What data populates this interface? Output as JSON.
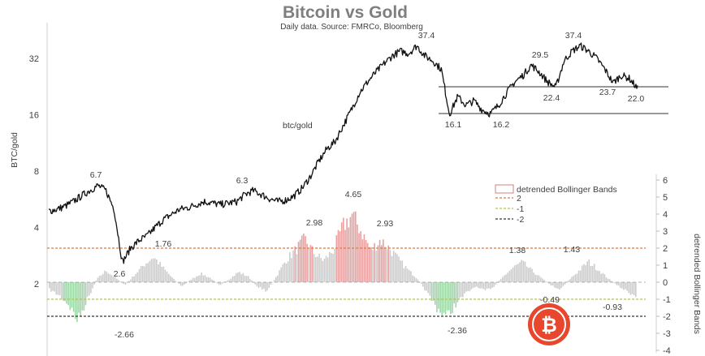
{
  "chart_data": {
    "type": "line",
    "title": "Bitcoin vs Gold",
    "subtitle": "Daily data.  Source: FMRCo, Bloomberg",
    "ylabel": "BTC/gold",
    "y2label": "detrended Bollinger Bands",
    "y_ticks": [
      {
        "value": 2,
        "label": "2"
      },
      {
        "value": 4,
        "label": "4"
      },
      {
        "value": 8,
        "label": "8"
      },
      {
        "value": 16,
        "label": "16"
      },
      {
        "value": 32,
        "label": "32"
      }
    ],
    "y2_ticks": [
      {
        "value": -4,
        "label": "-4"
      },
      {
        "value": -3,
        "label": "-3"
      },
      {
        "value": -2,
        "label": "-2"
      },
      {
        "value": -1,
        "label": "-1"
      },
      {
        "value": 0,
        "label": "0"
      },
      {
        "value": 1,
        "label": "1"
      },
      {
        "value": 2,
        "label": "2"
      },
      {
        "value": 3,
        "label": "3"
      },
      {
        "value": 4,
        "label": "4"
      },
      {
        "value": 5,
        "label": "5"
      },
      {
        "value": 6,
        "label": "6"
      }
    ],
    "series": [
      {
        "name": "btc/gold",
        "label": "btc/gold",
        "axis": "left",
        "values": [
          4.9,
          5.0,
          5.2,
          5.5,
          5.9,
          6.3,
          6.7,
          6.3,
          5.0,
          2.6,
          3.1,
          3.4,
          3.6,
          4.0,
          4.4,
          4.7,
          5.0,
          5.1,
          5.3,
          5.5,
          5.4,
          5.3,
          5.4,
          5.5,
          6.0,
          6.3,
          6.0,
          5.7,
          5.5,
          5.6,
          5.9,
          6.5,
          7.5,
          9.0,
          10.5,
          11.5,
          14.0,
          17.0,
          21.0,
          24.0,
          27.0,
          30.0,
          33.0,
          35.0,
          34.0,
          37.4,
          33.0,
          31.0,
          28.0,
          16.1,
          20.0,
          18.0,
          19.0,
          17.0,
          16.2,
          18.0,
          21.0,
          24.0,
          26.0,
          29.5,
          27.0,
          24.0,
          22.4,
          31.0,
          35.0,
          37.4,
          35.0,
          32.0,
          28.0,
          23.7,
          26.0,
          25.0,
          22.0
        ]
      },
      {
        "name": "detrended Bollinger Bands",
        "axis": "right",
        "values": [
          -0.5,
          -0.9,
          -1.5,
          -2.66,
          -1.2,
          0.2,
          0.8,
          0.3,
          -0.2,
          0.5,
          1.2,
          1.76,
          1.0,
          0.3,
          -0.3,
          0.2,
          0.6,
          0.3,
          -0.2,
          0.2,
          0.7,
          0.4,
          -0.3,
          -0.6,
          0.4,
          1.5,
          2.2,
          2.98,
          2.0,
          1.5,
          2.2,
          3.8,
          4.65,
          3.5,
          2.2,
          2.93,
          2.3,
          1.5,
          0.8,
          0.2,
          -0.8,
          -1.8,
          -2.36,
          -1.5,
          -0.8,
          -0.3,
          -0.6,
          -0.3,
          0.4,
          1.0,
          1.38,
          0.8,
          0.3,
          -0.2,
          -0.49,
          0.2,
          0.8,
          1.43,
          0.9,
          0.3,
          -0.2,
          -0.6,
          -0.93
        ]
      }
    ],
    "bands": [
      {
        "label": "2",
        "value": 2,
        "color": "#e07b39"
      },
      {
        "label": "-1",
        "value": -1,
        "color": "#b5c24a"
      },
      {
        "label": "-2",
        "value": -2,
        "color": "#333333"
      }
    ],
    "legend_title": "detrended Bollinger Bands",
    "range_box": {
      "labels": [
        "16.1",
        "16.2",
        "22.0"
      ]
    },
    "annotations_btc": [
      {
        "label": "6.7",
        "value": 6.7
      },
      {
        "label": "2.6",
        "value": 2.6
      },
      {
        "label": "6.3",
        "value": 6.3
      },
      {
        "label": "37.4",
        "value": 37.4
      },
      {
        "label": "16.1",
        "value": 16.1
      },
      {
        "label": "16.2",
        "value": 16.2
      },
      {
        "label": "29.5",
        "value": 29.5
      },
      {
        "label": "22.4",
        "value": 22.4
      },
      {
        "label": "37.4",
        "value": 37.4
      },
      {
        "label": "23.7",
        "value": 23.7
      },
      {
        "label": "22.0",
        "value": 22.0
      }
    ],
    "annotations_bb": [
      {
        "label": "-2.66",
        "value": -2.66
      },
      {
        "label": "1.76",
        "value": 1.76
      },
      {
        "label": "2.98",
        "value": 2.98
      },
      {
        "label": "4.65",
        "value": 4.65
      },
      {
        "label": "2.93",
        "value": 2.93
      },
      {
        "label": "-2.36",
        "value": -2.36
      },
      {
        "label": "1.38",
        "value": 1.38
      },
      {
        "label": "-0.49",
        "value": -0.49
      },
      {
        "label": "1.43",
        "value": 1.43
      },
      {
        "label": "-0.93",
        "value": -0.93
      }
    ],
    "colors": {
      "btc_line": "#111111",
      "bb_bar": "#cccccc",
      "bb_high": "#e8a0a0",
      "bb_low": "#9ed6a8",
      "logo": "#e8472e"
    }
  }
}
